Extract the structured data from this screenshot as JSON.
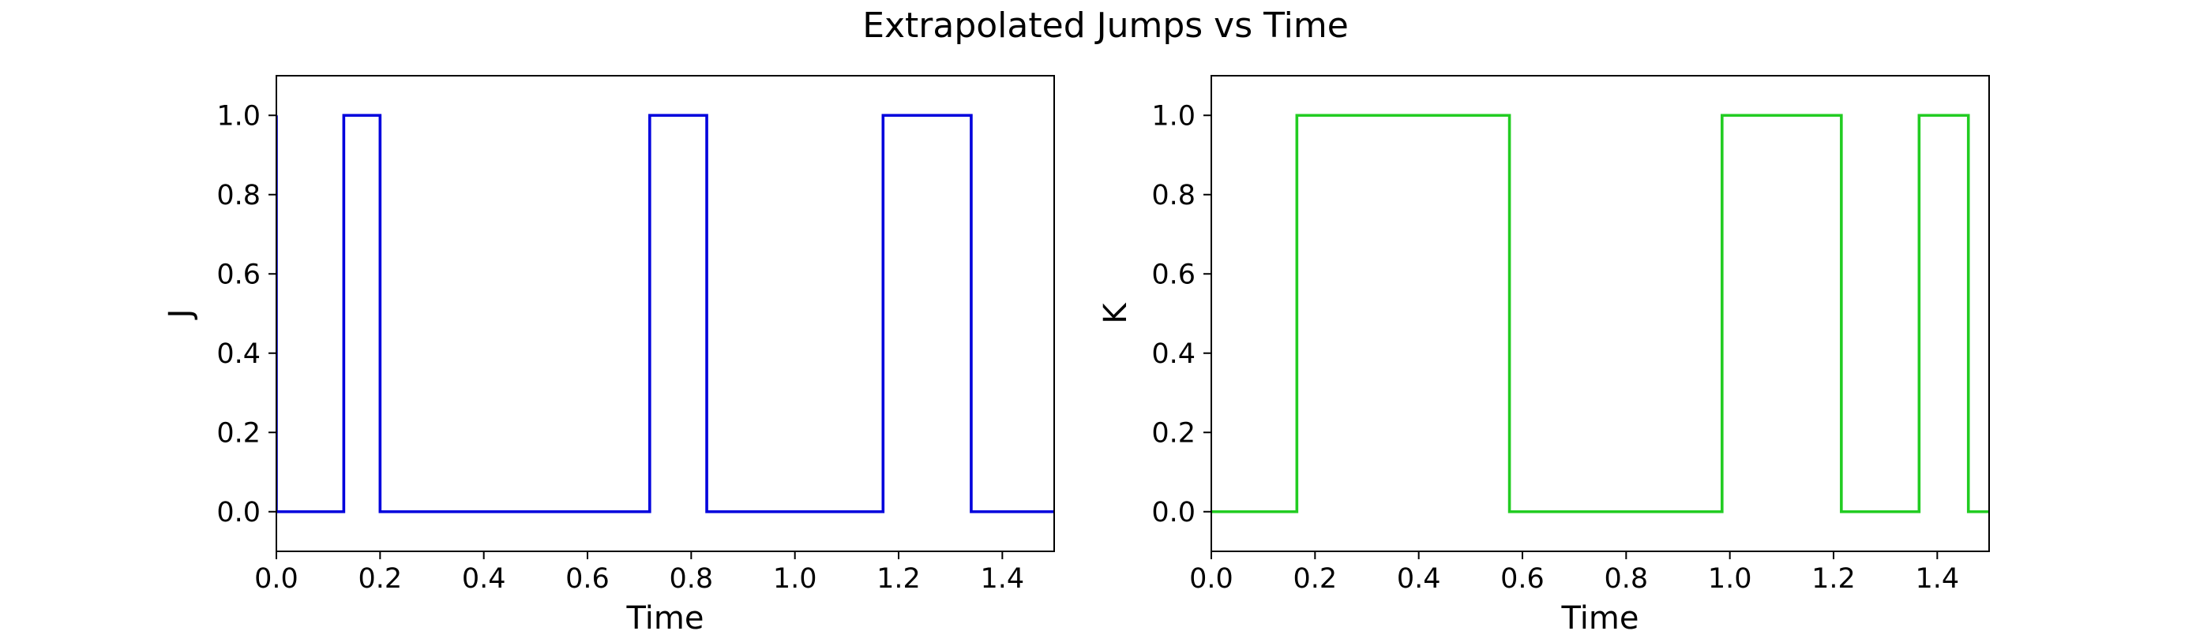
{
  "title": "Extrapolated Jumps vs Time",
  "chart_data": [
    {
      "type": "line",
      "step": true,
      "title": "",
      "xlabel": "Time",
      "ylabel": "J",
      "xlim": [
        0.0,
        1.5
      ],
      "ylim": [
        -0.1,
        1.1
      ],
      "xticks": [
        "0.0",
        "0.2",
        "0.4",
        "0.6",
        "0.8",
        "1.0",
        "1.2",
        "1.4"
      ],
      "yticks": [
        "0.0",
        "0.2",
        "0.4",
        "0.6",
        "0.8",
        "1.0"
      ],
      "grid": false,
      "color": "#0000dd",
      "series": [
        {
          "x": [
            0.0,
            0.0,
            0.13,
            0.13,
            0.2,
            0.2,
            0.72,
            0.72,
            0.83,
            0.83,
            1.17,
            1.17,
            1.34,
            1.34,
            1.5
          ],
          "y": [
            1.0,
            0.0,
            0.0,
            1.0,
            1.0,
            0.0,
            0.0,
            1.0,
            1.0,
            0.0,
            0.0,
            1.0,
            1.0,
            0.0,
            0.0
          ]
        }
      ]
    },
    {
      "type": "line",
      "step": true,
      "title": "",
      "xlabel": "Time",
      "ylabel": "K",
      "xlim": [
        0.0,
        1.5
      ],
      "ylim": [
        -0.1,
        1.1
      ],
      "xticks": [
        "0.0",
        "0.2",
        "0.4",
        "0.6",
        "0.8",
        "1.0",
        "1.2",
        "1.4"
      ],
      "yticks": [
        "0.0",
        "0.2",
        "0.4",
        "0.6",
        "0.8",
        "1.0"
      ],
      "grid": false,
      "color": "#22cc22",
      "series": [
        {
          "x": [
            0.0,
            0.165,
            0.165,
            0.575,
            0.575,
            0.985,
            0.985,
            1.215,
            1.215,
            1.365,
            1.365,
            1.46,
            1.46,
            1.5
          ],
          "y": [
            0.0,
            0.0,
            1.0,
            1.0,
            0.0,
            0.0,
            1.0,
            1.0,
            0.0,
            0.0,
            1.0,
            1.0,
            0.0,
            0.0
          ]
        }
      ]
    }
  ]
}
